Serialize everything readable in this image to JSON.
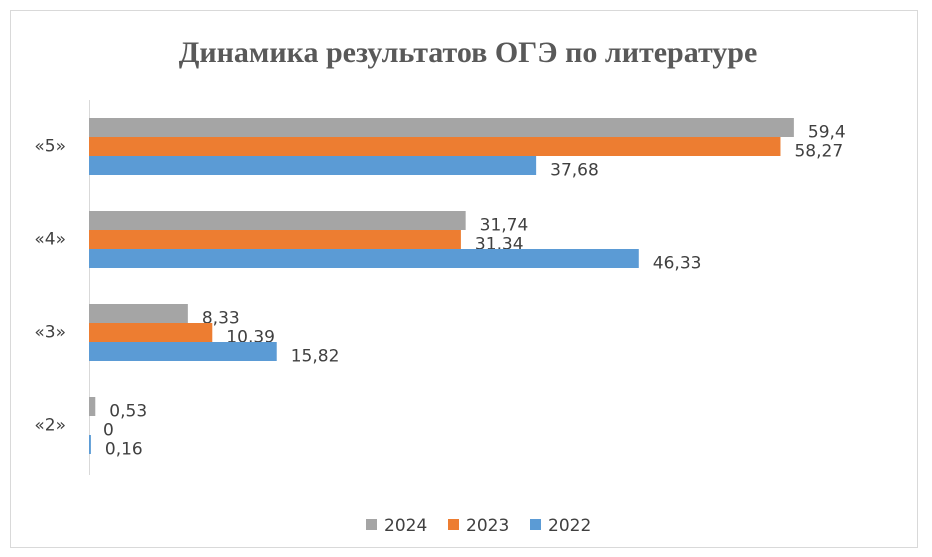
{
  "chart_data": {
    "type": "hbar",
    "title": "Динамика результатов ОГЭ по литературе",
    "categories": [
      "«5»",
      "«4»",
      "«3»",
      "«2»"
    ],
    "series": [
      {
        "name": "2024",
        "color": "#a5a5a5",
        "values": [
          59.4,
          31.74,
          8.33,
          0.53
        ],
        "value_labels": [
          "59,4",
          "31,74",
          "8,33",
          "0,53"
        ]
      },
      {
        "name": "2023",
        "color": "#ed7d31",
        "values": [
          58.27,
          31.34,
          10.39,
          0
        ],
        "value_labels": [
          "58,27",
          "31,34",
          "10,39",
          "0"
        ]
      },
      {
        "name": "2022",
        "color": "#5b9bd5",
        "values": [
          37.68,
          46.33,
          15.82,
          0.16
        ],
        "value_labels": [
          "37,68",
          "46,33",
          "15,82",
          "0,16"
        ]
      }
    ],
    "xlim": [
      0,
      60
    ],
    "legend": "bottom"
  }
}
